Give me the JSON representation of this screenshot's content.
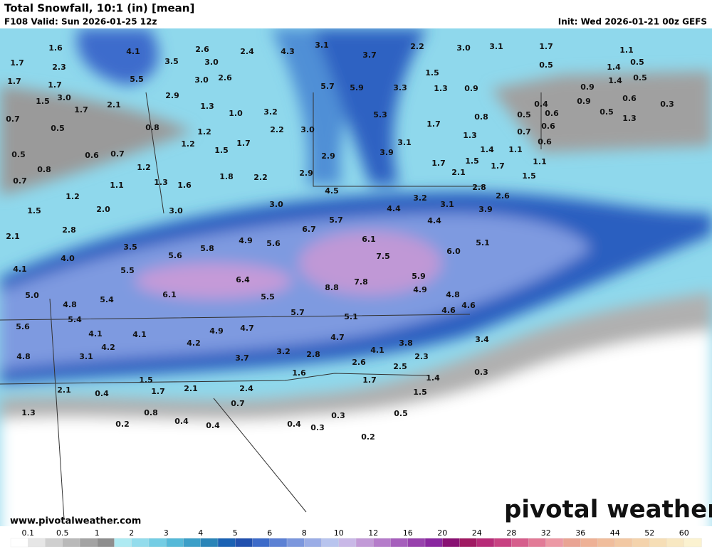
{
  "header": {
    "title": "Total Snowfall, 10:1 (in) [mean]",
    "valid": "F108 Valid: Sun 2026-01-25 12z",
    "init": "Init: Wed 2026-01-21 00z GEFS"
  },
  "map": {
    "labels": [
      "1.6",
      "4.1",
      "2.6",
      "2.4",
      "4.3",
      "3.1",
      "3.7",
      "2.2",
      "3.0",
      "3.1",
      "1.7",
      "1.1",
      "1.7",
      "2.3",
      "3.5",
      "3.0",
      "0.5",
      "1.4",
      "0.5",
      "5.5",
      "3.0",
      "2.6",
      "1.5",
      "1.4",
      "0.5",
      "1.7",
      "1.7",
      "5.7",
      "5.9",
      "3.3",
      "1.3",
      "0.9",
      "0.9",
      "3.0",
      "2.9",
      "1.5",
      "2.1",
      "1.7",
      "1.3",
      "1.0",
      "3.2",
      "5.3",
      "0.4",
      "0.9",
      "0.6",
      "0.3",
      "0.7",
      "0.5",
      "0.8",
      "1.2",
      "2.2",
      "3.0",
      "1.7",
      "0.8",
      "0.5",
      "0.6",
      "0.5",
      "1.3",
      "1.3",
      "0.6",
      "0.7",
      "0.6",
      "0.5",
      "0.6",
      "0.7",
      "1.2",
      "1.5",
      "1.7",
      "3.1",
      "2.9",
      "3.9",
      "1.4",
      "1.1",
      "1.7",
      "1.5",
      "1.1",
      "0.8",
      "1.2",
      "1.8",
      "2.2",
      "2.9",
      "2.1",
      "1.7",
      "1.5",
      "0.7",
      "1.1",
      "1.3",
      "1.6",
      "4.5",
      "2.8",
      "2.6",
      "1.2",
      "2.0",
      "3.0",
      "3.0",
      "4.4",
      "3.2",
      "3.1",
      "3.9",
      "1.5",
      "2.8",
      "4.4",
      "5.7",
      "6.7",
      "2.1",
      "6.1",
      "4.9",
      "5.6",
      "3.5",
      "5.8",
      "5.1",
      "6.0",
      "7.5",
      "5.6",
      "4.0",
      "4.1",
      "5.5",
      "6.4",
      "5.9",
      "7.8",
      "8.8",
      "6.1",
      "4.9",
      "5.0",
      "5.4",
      "5.5",
      "4.8",
      "4.8",
      "4.6",
      "5.7",
      "4.6",
      "5.1",
      "5.4",
      "5.6",
      "4.9",
      "4.7",
      "4.1",
      "4.1",
      "4.7",
      "4.2",
      "3.8",
      "4.2",
      "3.4",
      "4.1",
      "3.2",
      "2.8",
      "3.7",
      "2.3",
      "3.1",
      "4.8",
      "2.6",
      "2.5",
      "0.3",
      "1.6",
      "1.4",
      "1.7",
      "1.5",
      "2.1",
      "0.4",
      "1.7",
      "2.1",
      "2.4",
      "1.5",
      "0.7",
      "1.3",
      "0.8",
      "0.3",
      "0.5",
      "0.2",
      "0.4",
      "0.4",
      "0.4",
      "0.3",
      "0.2"
    ]
  },
  "footer": {
    "website": "www.pivotalweather.com",
    "logo": "pivotal weather"
  },
  "legend": {
    "ticks": [
      0.1,
      0.5,
      1,
      2,
      3,
      4,
      5,
      6,
      8,
      10,
      12,
      16,
      20,
      24,
      28,
      32,
      36,
      44,
      52,
      60
    ],
    "colors": [
      "#ffffff",
      "#e6e6e6",
      "#cfcfcf",
      "#b9b9b9",
      "#a3a3a3",
      "#8e8e8e",
      "#aeeaf2",
      "#93dcec",
      "#74cde4",
      "#55b9d8",
      "#3c9fc8",
      "#2a85b8",
      "#1b62b4",
      "#2150ae",
      "#3d6bc9",
      "#5c81d4",
      "#7c97dd",
      "#9badE6",
      "#b8c4ee",
      "#c9b8e7",
      "#c29ad7",
      "#b57cca",
      "#a65fbc",
      "#9842ad",
      "#8a27a0",
      "#891173",
      "#a01a62",
      "#b72b78",
      "#c84282",
      "#d65e8c",
      "#e27b97",
      "#ec99a5",
      "#e9a494",
      "#eeb196",
      "#f0bd9c",
      "#f2c8a3",
      "#f4d3ac",
      "#f6deb6",
      "#f8e8c2",
      "#fbf2d0"
    ]
  }
}
